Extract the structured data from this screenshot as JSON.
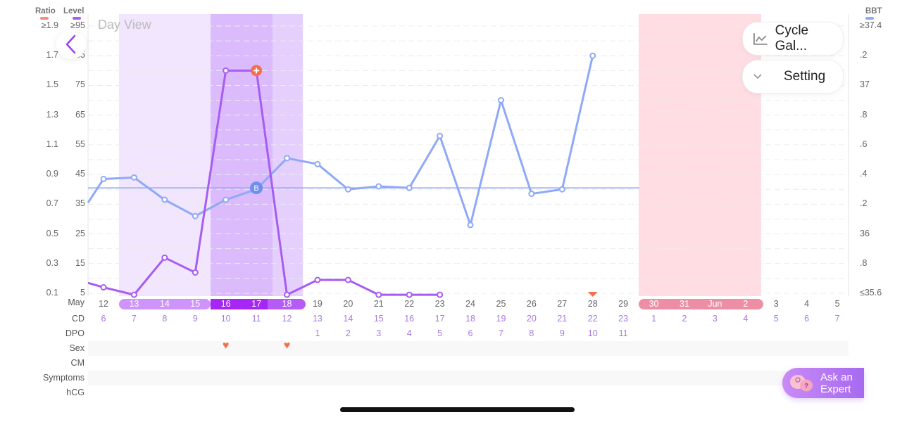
{
  "header": {
    "left_axis_heads": [
      "Ratio",
      "Level"
    ],
    "right_axis_head": "BBT",
    "day_view_label": "Day View",
    "colors": {
      "ratio": "#f58d7c",
      "level": "#a75cf2",
      "bbt": "#8fa9f7",
      "period": "#ffdde3",
      "fertile_light": "#f2e6fe",
      "fertile_mid": "#dbbbfc",
      "fertile_late": "#e5cffd"
    }
  },
  "buttons": {
    "back": "back",
    "cycle_gallery": "Cycle Gal...",
    "setting": "Setting",
    "ask_expert_line1": "Ask an",
    "ask_expert_line2": "Expert"
  },
  "left_ticks": {
    "ratio": [
      "≥1.9",
      "1.7",
      "1.5",
      "1.3",
      "1.1",
      "0.9",
      "0.7",
      "0.5",
      "0.3",
      "0.1"
    ],
    "level": [
      "≥95",
      "85",
      "75",
      "65",
      "55",
      "45",
      "35",
      "25",
      "15",
      "5"
    ]
  },
  "right_ticks": [
    "≥37.4",
    ".2",
    "37",
    ".8",
    ".6",
    ".4",
    ".2",
    "36",
    ".8",
    "≤35.6"
  ],
  "rows": {
    "labels": [
      "May",
      "CD",
      "DPO",
      "Sex",
      "CM",
      "Symptoms",
      "hCG"
    ],
    "dates": [
      "12",
      "13",
      "14",
      "15",
      "16",
      "17",
      "18",
      "19",
      "20",
      "21",
      "22",
      "23",
      "24",
      "25",
      "26",
      "27",
      "28",
      "29",
      "30",
      "31",
      "Jun",
      "2",
      "3",
      "4",
      "5"
    ],
    "cd": [
      "6",
      "7",
      "8",
      "9",
      "10",
      "11",
      "12",
      "13",
      "14",
      "15",
      "16",
      "17",
      "18",
      "19",
      "20",
      "21",
      "22",
      "23",
      "1",
      "2",
      "3",
      "4",
      "5",
      "6",
      "7"
    ],
    "dpo": [
      "",
      "",
      "",
      "",
      "",
      "",
      "",
      "1",
      "2",
      "3",
      "4",
      "5",
      "6",
      "7",
      "8",
      "9",
      "10",
      "11",
      "",
      "",
      "",
      "",
      "",
      "",
      ""
    ],
    "sex": [
      "",
      "",
      "",
      "",
      "♥",
      "",
      "♥",
      "",
      "",
      "",
      "",
      "",
      "",
      "",
      "",
      "",
      "",
      "",
      "",
      "",
      "",
      "",
      "",
      "",
      ""
    ]
  },
  "chart_data": {
    "type": "line",
    "title": "Day View",
    "x": [
      "May 12",
      "May 13",
      "May 14",
      "May 15",
      "May 16",
      "May 17",
      "May 18",
      "May 19",
      "May 20",
      "May 21",
      "May 22",
      "May 23",
      "May 24",
      "May 25",
      "May 26",
      "May 27",
      "May 28",
      "May 29",
      "May 30",
      "May 31",
      "Jun 1",
      "Jun 2",
      "Jun 3",
      "Jun 4",
      "Jun 5"
    ],
    "series": [
      {
        "name": "LH Level",
        "axis": "left (Level)",
        "values": [
          7,
          4.5,
          17,
          12,
          80,
          80,
          4.5,
          9.5,
          9.5,
          4.5,
          4.5,
          4.5,
          null,
          null,
          null,
          null,
          null,
          null,
          null,
          null,
          null,
          null,
          null,
          null,
          null
        ],
        "peak_marker": "May 17"
      },
      {
        "name": "BBT",
        "axis": "right (°C)",
        "values": [
          36.37,
          36.38,
          36.23,
          36.12,
          36.23,
          36.3,
          36.51,
          36.47,
          36.3,
          36.32,
          36.31,
          36.66,
          36.06,
          36.9,
          36.27,
          36.3,
          37.2,
          null,
          null,
          null,
          null,
          null,
          null,
          null,
          null
        ]
      }
    ],
    "coverline": 36.31,
    "left_ylim_level": [
      5,
      95
    ],
    "left_ylim_ratio": [
      0.1,
      1.9
    ],
    "right_ylim": [
      35.6,
      37.4
    ],
    "ovulation_marker": "May 17 (B)",
    "predicted_period": [
      "May 30",
      "Jun 2"
    ],
    "fertile_window": [
      "May 13",
      "May 18"
    ],
    "peak_days": [
      "May 16",
      "May 17"
    ],
    "triangle_marker": "May 28"
  }
}
